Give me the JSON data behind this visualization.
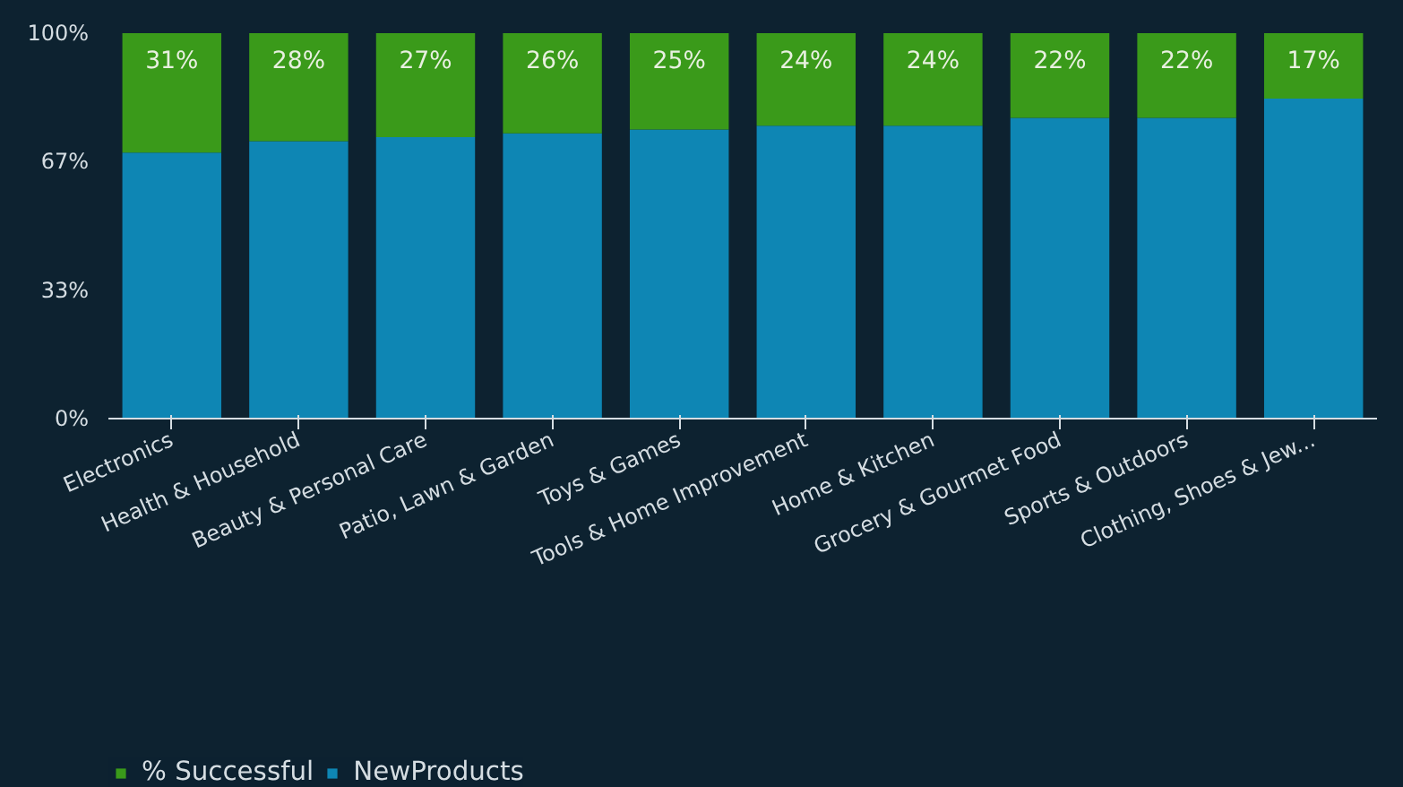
{
  "chart_data": {
    "type": "bar",
    "stacked": true,
    "categories": [
      "Electronics",
      "Health & Household",
      "Beauty & Personal Care",
      "Patio, Lawn & Garden",
      "Toys & Games",
      "Tools & Home Improvement",
      "Home & Kitchen",
      "Grocery & Gourmet Food",
      "Sports & Outdoors",
      "Clothing, Shoes & Jew..."
    ],
    "series": [
      {
        "name": "NewProducts",
        "color": "#0e86b4",
        "values": [
          69,
          72,
          73,
          74,
          75,
          76,
          76,
          78,
          78,
          83
        ]
      },
      {
        "name": "% Successful",
        "color": "#3a9a1a",
        "values": [
          31,
          28,
          27,
          26,
          25,
          24,
          24,
          22,
          22,
          17
        ],
        "value_labels": [
          "31%",
          "28%",
          "27%",
          "26%",
          "25%",
          "24%",
          "24%",
          "22%",
          "22%",
          "17%"
        ]
      }
    ],
    "ylim": [
      0,
      100
    ],
    "yticks": [
      {
        "value": 0,
        "label": "0%"
      },
      {
        "value": 33.3,
        "label": "33%"
      },
      {
        "value": 66.7,
        "label": "67%"
      },
      {
        "value": 100,
        "label": "100%"
      }
    ],
    "grid": false,
    "legend": "bottom left"
  }
}
